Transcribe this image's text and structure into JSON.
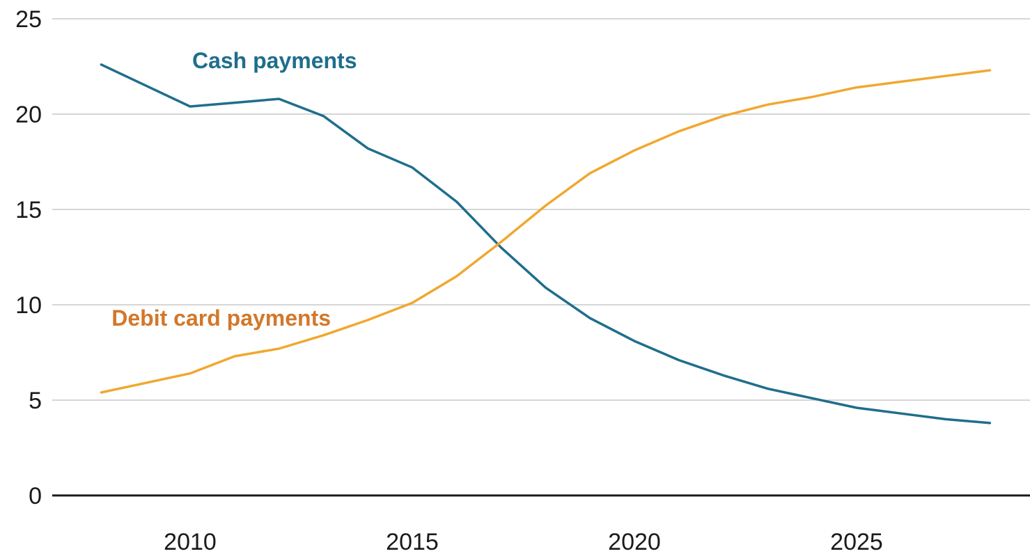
{
  "chart_data": {
    "type": "line",
    "title": "",
    "xlabel": "",
    "ylabel": "",
    "xlim": [
      2007.6,
      2029.6
    ],
    "ylim": [
      0,
      25
    ],
    "x_ticks": [
      2010,
      2015,
      2020,
      2025
    ],
    "y_ticks": [
      0,
      5,
      10,
      15,
      20,
      25
    ],
    "grid": true,
    "legend": "inline labels",
    "series": [
      {
        "name": "Cash payments",
        "color": "#1f6e8c",
        "label_color": "#1f6e8c",
        "label_anchor": [
          2011.9,
          22.4
        ],
        "x": [
          2008,
          2009,
          2010,
          2011,
          2012,
          2013,
          2014,
          2015,
          2016,
          2017,
          2018,
          2019,
          2020,
          2021,
          2022,
          2023,
          2024,
          2025,
          2026,
          2027,
          2028
        ],
        "values": [
          22.6,
          21.5,
          20.4,
          20.6,
          20.8,
          19.9,
          18.2,
          17.2,
          15.4,
          13.0,
          10.9,
          9.3,
          8.1,
          7.1,
          6.3,
          5.6,
          5.1,
          4.6,
          4.3,
          4.0,
          3.8
        ]
      },
      {
        "name": "Debit card payments",
        "color": "#f0a830",
        "label_color": "#d2782a",
        "label_anchor": [
          2010.7,
          8.9
        ],
        "x": [
          2008,
          2009,
          2010,
          2011,
          2012,
          2013,
          2014,
          2015,
          2016,
          2017,
          2018,
          2019,
          2020,
          2021,
          2022,
          2023,
          2024,
          2025,
          2026,
          2027,
          2028
        ],
        "values": [
          5.4,
          5.9,
          6.4,
          7.3,
          7.7,
          8.4,
          9.2,
          10.1,
          11.5,
          13.3,
          15.2,
          16.9,
          18.1,
          19.1,
          19.9,
          20.5,
          20.9,
          21.4,
          21.7,
          22.0,
          22.3
        ]
      }
    ]
  }
}
